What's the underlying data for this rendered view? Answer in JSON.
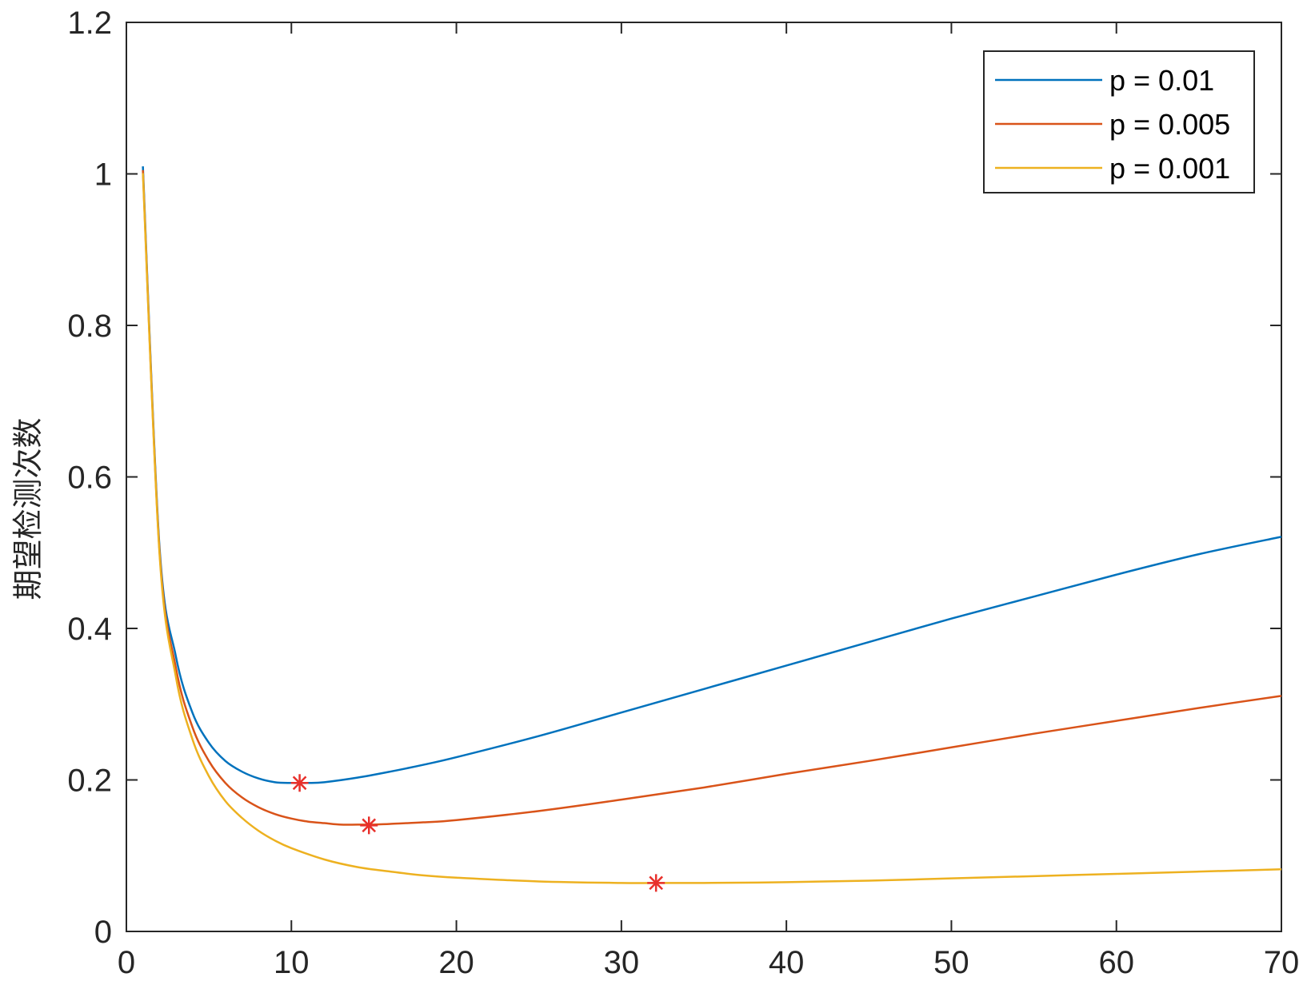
{
  "chart_data": {
    "type": "line",
    "title": "",
    "xlabel": "",
    "ylabel": "期望检测次数",
    "xlim": [
      0,
      70
    ],
    "ylim": [
      0,
      1.2
    ],
    "xticks": [
      0,
      10,
      20,
      30,
      40,
      50,
      60,
      70
    ],
    "xtick_labels": [
      "0",
      "10",
      "20",
      "30",
      "40",
      "50",
      "60",
      "70"
    ],
    "yticks": [
      0,
      0.2,
      0.4,
      0.6,
      0.8,
      1,
      1.2
    ],
    "ytick_labels": [
      "0",
      "0.2",
      "0.4",
      "0.6",
      "0.8",
      "1",
      "1.2"
    ],
    "grid": false,
    "legend_position": "top-right",
    "series": [
      {
        "name": "p = 0.01",
        "color": "#0072BD",
        "x": [
          1,
          2,
          3,
          4,
          5,
          6,
          7,
          8,
          9,
          10,
          11,
          12,
          14,
          16,
          18,
          20,
          25,
          30,
          35,
          40,
          45,
          50,
          55,
          60,
          65,
          70
        ],
        "y": [
          1.01,
          0.51,
          0.363,
          0.289,
          0.249,
          0.225,
          0.211,
          0.202,
          0.197,
          0.196,
          0.196,
          0.197,
          0.203,
          0.211,
          0.22,
          0.23,
          0.258,
          0.289,
          0.32,
          0.351,
          0.382,
          0.413,
          0.442,
          0.471,
          0.498,
          0.521
        ]
      },
      {
        "name": "p = 0.005",
        "color": "#D95319",
        "x": [
          1,
          2,
          3,
          4,
          5,
          6,
          7,
          8,
          9,
          10,
          11,
          12,
          13,
          14,
          15,
          16,
          18,
          20,
          25,
          30,
          35,
          40,
          45,
          50,
          55,
          60,
          65,
          70
        ],
        "y": [
          1.005,
          0.505,
          0.348,
          0.27,
          0.225,
          0.196,
          0.177,
          0.164,
          0.155,
          0.149,
          0.145,
          0.143,
          0.141,
          0.141,
          0.141,
          0.142,
          0.144,
          0.147,
          0.159,
          0.174,
          0.19,
          0.208,
          0.225,
          0.243,
          0.261,
          0.278,
          0.295,
          0.311
        ]
      },
      {
        "name": "p = 0.001",
        "color": "#EDB120",
        "x": [
          1,
          2,
          3,
          4,
          5,
          6,
          7,
          8,
          9,
          10,
          12,
          14,
          16,
          18,
          20,
          25,
          30,
          32,
          35,
          40,
          45,
          50,
          55,
          60,
          65,
          70
        ],
        "y": [
          1.001,
          0.501,
          0.336,
          0.254,
          0.205,
          0.172,
          0.15,
          0.133,
          0.12,
          0.11,
          0.095,
          0.085,
          0.079,
          0.074,
          0.071,
          0.066,
          0.064,
          0.064,
          0.064,
          0.065,
          0.067,
          0.07,
          0.073,
          0.076,
          0.079,
          0.082
        ]
      }
    ],
    "markers": {
      "symbol": "*",
      "color": "#E8302B",
      "points": [
        {
          "x": 10.5,
          "y": 0.196
        },
        {
          "x": 14.7,
          "y": 0.14
        },
        {
          "x": 32.1,
          "y": 0.064
        }
      ]
    }
  }
}
